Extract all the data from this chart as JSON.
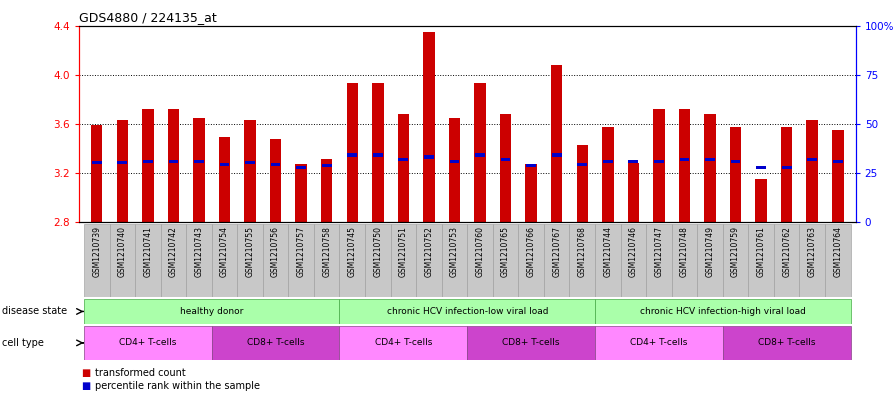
{
  "title": "GDS4880 / 224135_at",
  "samples": [
    "GSM1210739",
    "GSM1210740",
    "GSM1210741",
    "GSM1210742",
    "GSM1210743",
    "GSM1210754",
    "GSM1210755",
    "GSM1210756",
    "GSM1210757",
    "GSM1210758",
    "GSM1210745",
    "GSM1210750",
    "GSM1210751",
    "GSM1210752",
    "GSM1210753",
    "GSM1210760",
    "GSM1210765",
    "GSM1210766",
    "GSM1210767",
    "GSM1210768",
    "GSM1210744",
    "GSM1210746",
    "GSM1210747",
    "GSM1210748",
    "GSM1210749",
    "GSM1210759",
    "GSM1210761",
    "GSM1210762",
    "GSM1210763",
    "GSM1210764"
  ],
  "bar_values": [
    3.59,
    3.63,
    3.72,
    3.72,
    3.65,
    3.49,
    3.63,
    3.48,
    3.27,
    3.31,
    3.93,
    3.93,
    3.68,
    4.35,
    3.65,
    3.93,
    3.68,
    3.27,
    4.08,
    3.43,
    3.57,
    3.28,
    3.72,
    3.72,
    3.68,
    3.57,
    3.15,
    3.57,
    3.63,
    3.55
  ],
  "percentile_values": [
    3.285,
    3.285,
    3.295,
    3.295,
    3.295,
    3.27,
    3.285,
    3.27,
    3.245,
    3.26,
    3.345,
    3.345,
    3.31,
    3.33,
    3.295,
    3.345,
    3.31,
    3.26,
    3.345,
    3.27,
    3.295,
    3.295,
    3.295,
    3.31,
    3.31,
    3.295,
    3.245,
    3.245,
    3.31,
    3.295
  ],
  "ylim_left": [
    2.8,
    4.4
  ],
  "ylim_right": [
    0,
    100
  ],
  "bar_color": "#CC0000",
  "percentile_color": "#0000CC",
  "bar_width": 0.45,
  "yticks_left": [
    2.8,
    3.2,
    3.6,
    4.0,
    4.4
  ],
  "yticks_right": [
    0,
    25,
    50,
    75,
    100
  ],
  "ytick_labels_right": [
    "0",
    "25",
    "50",
    "75",
    "100%"
  ],
  "disease_groups": [
    {
      "label": "healthy donor",
      "start": 0,
      "end": 9
    },
    {
      "label": "chronic HCV infection-low viral load",
      "start": 10,
      "end": 19
    },
    {
      "label": "chronic HCV infection-high viral load",
      "start": 20,
      "end": 29
    }
  ],
  "cell_groups": [
    {
      "label": "CD4+ T-cells",
      "start": 0,
      "end": 4,
      "type": "cd4"
    },
    {
      "label": "CD8+ T-cells",
      "start": 5,
      "end": 9,
      "type": "cd8"
    },
    {
      "label": "CD4+ T-cells",
      "start": 10,
      "end": 14,
      "type": "cd4"
    },
    {
      "label": "CD8+ T-cells",
      "start": 15,
      "end": 19,
      "type": "cd8"
    },
    {
      "label": "CD4+ T-cells",
      "start": 20,
      "end": 24,
      "type": "cd4"
    },
    {
      "label": "CD8+ T-cells",
      "start": 25,
      "end": 29,
      "type": "cd8"
    }
  ],
  "disease_state_label": "disease state",
  "cell_type_label": "cell type",
  "disease_bg": "#aaffaa",
  "cd4_color": "#FF88FF",
  "cd8_color": "#CC44CC",
  "legend_transformed": "transformed count",
  "legend_percentile": "percentile rank within the sample",
  "legend_color_transformed": "#CC0000",
  "legend_color_percentile": "#0000CC",
  "xtick_bg": "#C8C8C8",
  "xtick_border": "#999999"
}
